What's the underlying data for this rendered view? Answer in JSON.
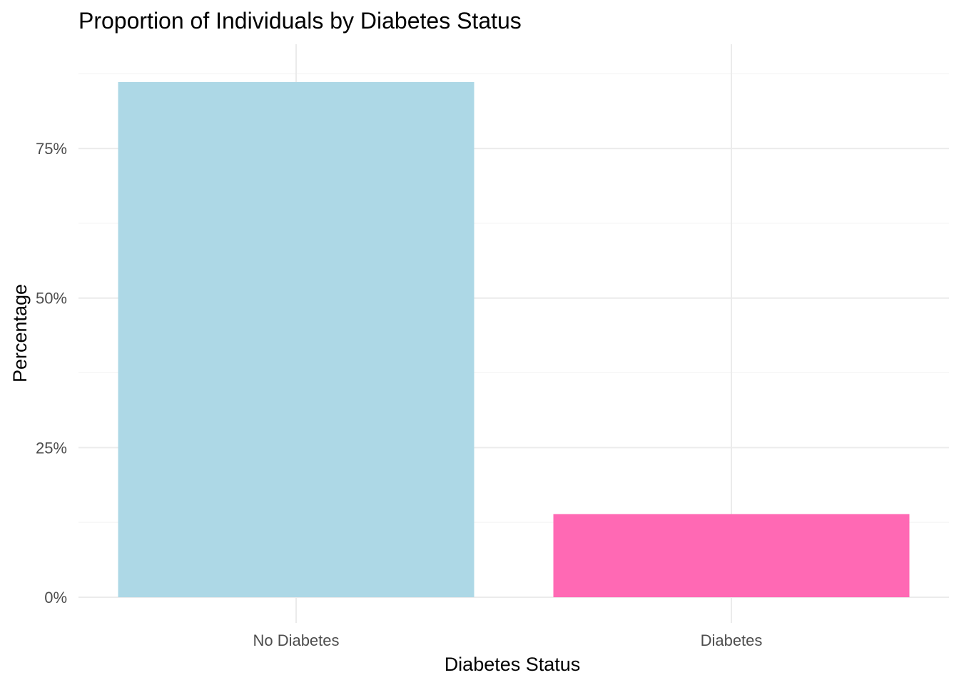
{
  "chart_data": {
    "type": "bar",
    "title": "Proportion of Individuals by Diabetes Status",
    "xlabel": "Diabetes Status",
    "ylabel": "Percentage",
    "categories": [
      "No Diabetes",
      "Diabetes"
    ],
    "values": [
      86.1,
      13.9
    ],
    "value_unit": "%",
    "colors": [
      "#add8e6",
      "#ff69b4"
    ],
    "ylim": [
      0,
      89.5
    ],
    "yticks": [
      0,
      25,
      50,
      75
    ],
    "ytick_labels": [
      "0%",
      "25%",
      "50%",
      "75%"
    ],
    "grid": true,
    "legend": "none"
  }
}
